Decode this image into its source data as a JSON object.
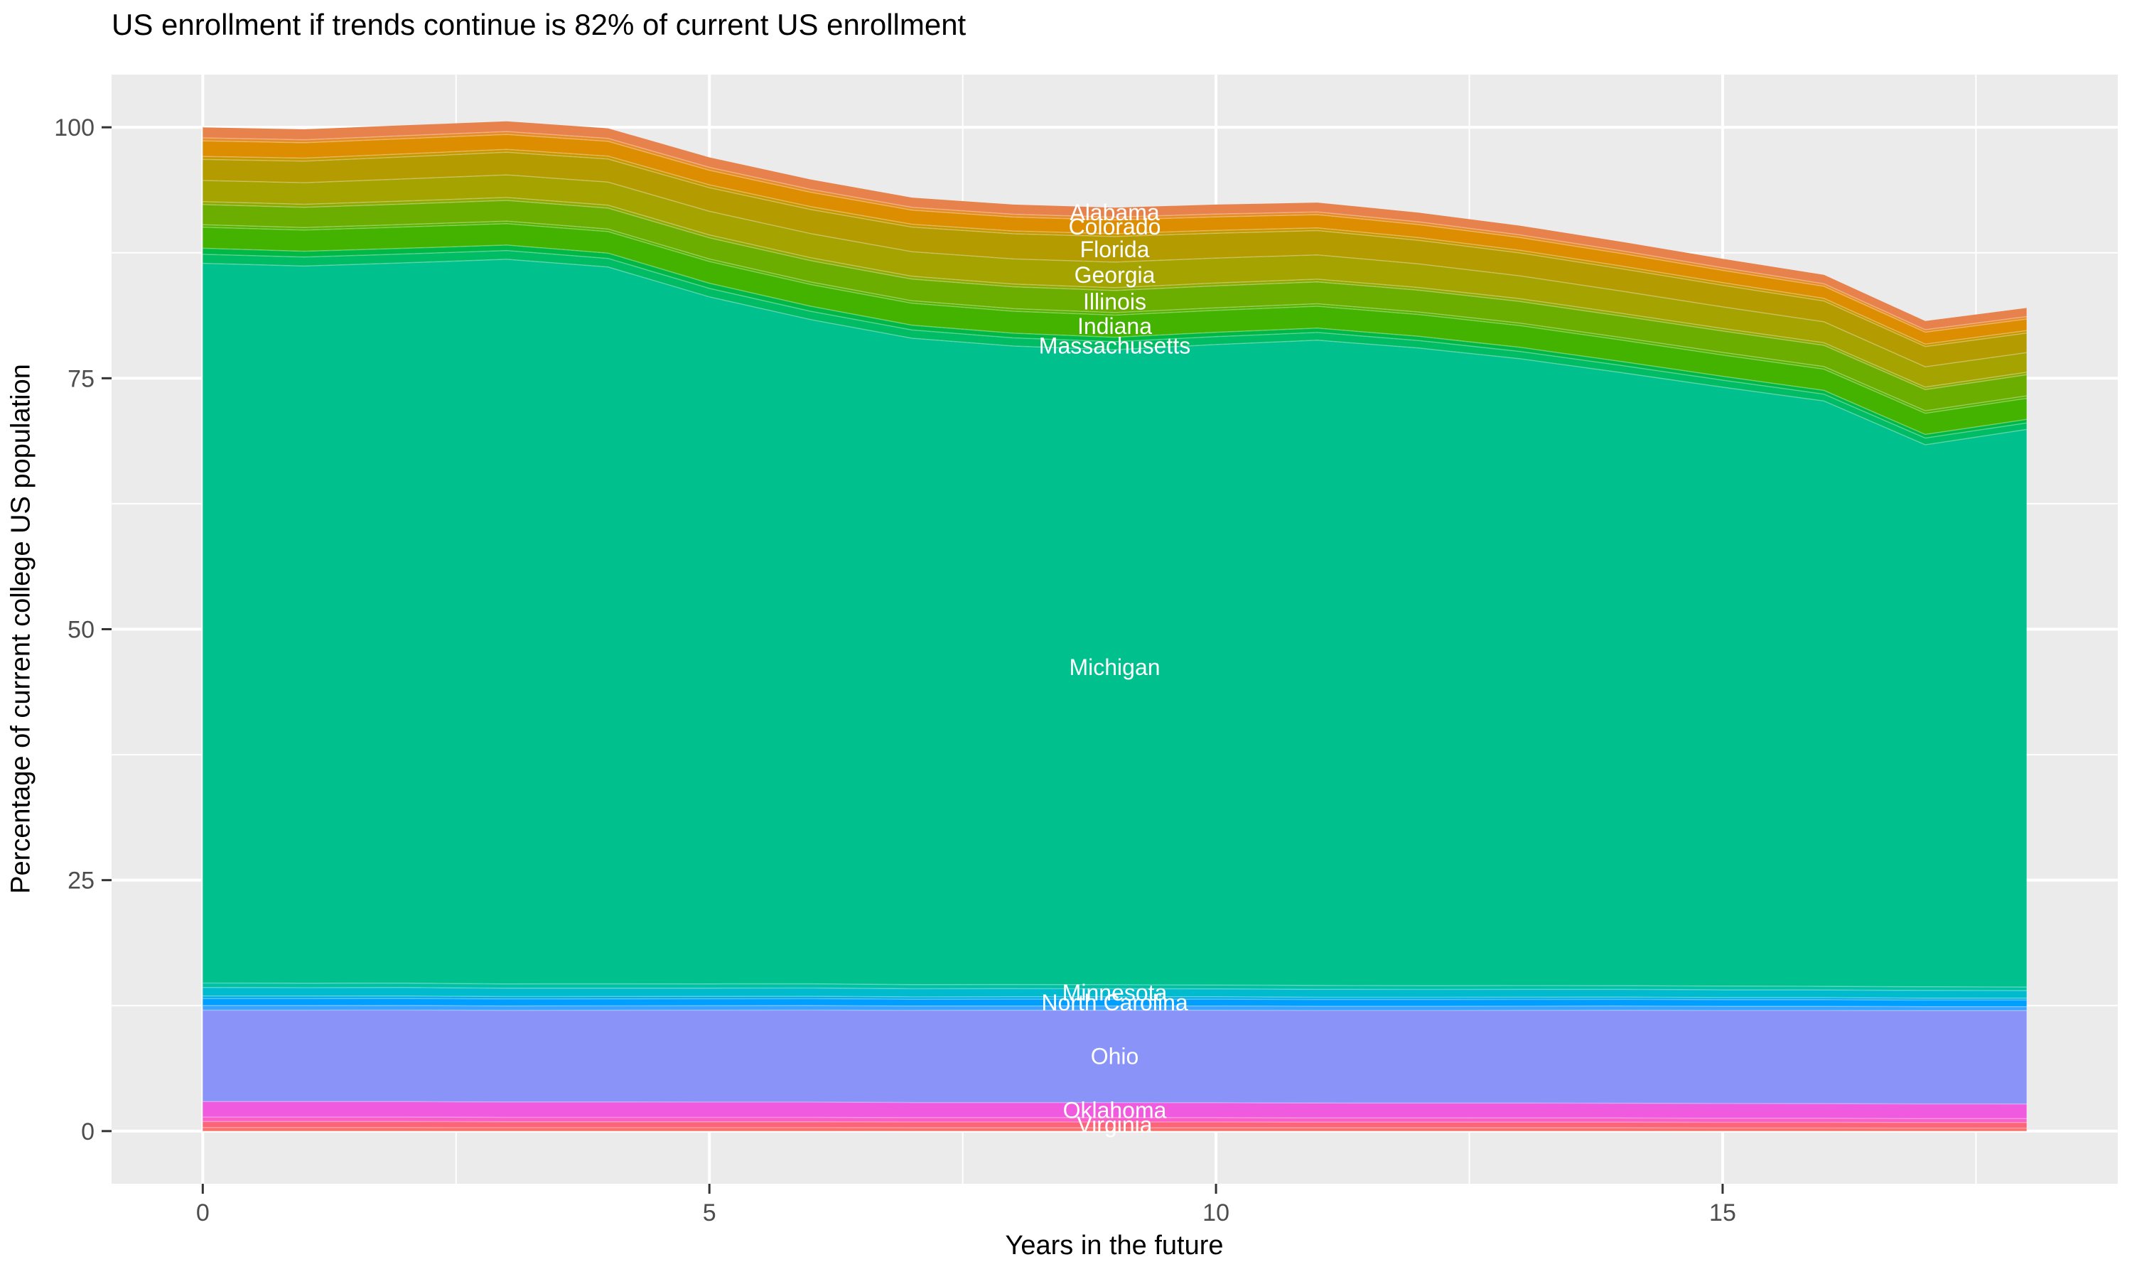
{
  "title": "US enrollment if trends continue is 82% of current US enrollment",
  "x_axis": {
    "label": "Years in the future",
    "ticks": [
      0,
      5,
      10,
      15
    ],
    "minor_ticks": [
      2.5,
      7.5,
      12.5,
      17.5
    ],
    "range": [
      -0.9,
      18.9
    ]
  },
  "y_axis": {
    "label": "Percentage of current college US population",
    "ticks": [
      0,
      25,
      50,
      75,
      100
    ],
    "minor_ticks": [
      12.5,
      37.5,
      62.5,
      87.5
    ],
    "range": [
      -5.25,
      105.25
    ]
  },
  "style": {
    "background": "#FFFFFF",
    "panel": "#EBEBEB",
    "grid": "#FFFFFF",
    "tick_mark": "#333333",
    "tick_label": "#4D4D4D",
    "title_color": "#000000",
    "band_label_color": "#FFFFFF",
    "band_separator": "rgba(255,255,255,0.30)"
  },
  "chart_data": {
    "type": "area",
    "stacked": true,
    "title": "US enrollment if trends continue is 82% of current US enrollment",
    "xlabel": "Years in the future",
    "ylabel": "Percentage of current college US population",
    "xlim": [
      -0.9,
      18.9
    ],
    "ylim": [
      -5.25,
      105.25
    ],
    "grid": true,
    "legend": false,
    "label_x_year": 9,
    "end_total_pct": 82,
    "x": [
      0,
      1,
      2,
      3,
      4,
      5,
      6,
      7,
      8,
      9,
      10,
      11,
      12,
      13,
      14,
      15,
      16,
      17,
      18
    ],
    "totals_top_boundary": [
      100,
      99.8,
      100.2,
      100.6,
      99.9,
      97.0,
      94.8,
      93.0,
      92.3,
      92.0,
      92.3,
      92.5,
      91.5,
      90.2,
      88.6,
      86.9,
      85.3,
      80.7,
      82.0
    ],
    "series_top_to_bottom": [
      {
        "key": "alabama",
        "name": "Alabama",
        "labeled": true,
        "color": "#E8824D",
        "values": [
          1.05,
          1.04,
          1.03,
          1.02,
          1.01,
          0.99,
          0.98,
          0.97,
          0.96,
          0.95,
          0.94,
          0.93,
          0.92,
          0.91,
          0.9,
          0.89,
          0.88,
          0.86,
          0.85
        ]
      },
      {
        "key": "minor-1",
        "name": "",
        "labeled": false,
        "color": "#E78C2A",
        "values": [
          0.3,
          0.3,
          0.3,
          0.29,
          0.29,
          0.29,
          0.29,
          0.28,
          0.28,
          0.28,
          0.28,
          0.27,
          0.27,
          0.27,
          0.27,
          0.26,
          0.26,
          0.25,
          0.25
        ]
      },
      {
        "key": "colorado",
        "name": "Colorado",
        "labeled": true,
        "color": "#DD8D00",
        "values": [
          1.55,
          1.53,
          1.51,
          1.49,
          1.47,
          1.45,
          1.43,
          1.41,
          1.39,
          1.37,
          1.35,
          1.32,
          1.3,
          1.27,
          1.25,
          1.23,
          1.2,
          1.18,
          1.15
        ]
      },
      {
        "key": "minor-2",
        "name": "",
        "labeled": false,
        "color": "#C89800",
        "values": [
          0.3,
          0.3,
          0.3,
          0.29,
          0.29,
          0.29,
          0.29,
          0.28,
          0.28,
          0.28,
          0.28,
          0.27,
          0.27,
          0.27,
          0.27,
          0.26,
          0.26,
          0.25,
          0.25
        ]
      },
      {
        "key": "florida",
        "name": "Florida",
        "labeled": true,
        "color": "#B49B00",
        "values": [
          2.1,
          2.15,
          2.2,
          2.25,
          2.3,
          2.35,
          2.4,
          2.45,
          2.5,
          2.55,
          2.48,
          2.42,
          2.35,
          2.28,
          2.22,
          2.15,
          2.08,
          2.02,
          1.95
        ]
      },
      {
        "key": "georgia",
        "name": "Georgia",
        "labeled": true,
        "color": "#A5A300",
        "values": [
          2.1,
          2.15,
          2.2,
          2.25,
          2.3,
          2.35,
          2.4,
          2.45,
          2.5,
          2.55,
          2.48,
          2.42,
          2.35,
          2.28,
          2.22,
          2.15,
          2.08,
          2.02,
          1.95
        ]
      },
      {
        "key": "minor-3",
        "name": "",
        "labeled": false,
        "color": "#8FAA00",
        "values": [
          0.3,
          0.3,
          0.3,
          0.29,
          0.29,
          0.29,
          0.29,
          0.28,
          0.28,
          0.28,
          0.28,
          0.27,
          0.27,
          0.27,
          0.27,
          0.26,
          0.26,
          0.25,
          0.25
        ]
      },
      {
        "key": "illinois",
        "name": "Illinois",
        "labeled": true,
        "color": "#6CAE00",
        "values": [
          2.0,
          2.02,
          2.04,
          2.07,
          2.09,
          2.11,
          2.13,
          2.16,
          2.18,
          2.2,
          2.19,
          2.18,
          2.17,
          2.16,
          2.14,
          2.13,
          2.12,
          2.11,
          2.1
        ]
      },
      {
        "key": "minor-4",
        "name": "",
        "labeled": false,
        "color": "#55B300",
        "values": [
          0.25,
          0.25,
          0.25,
          0.25,
          0.25,
          0.25,
          0.25,
          0.25,
          0.25,
          0.25,
          0.25,
          0.25,
          0.25,
          0.25,
          0.25,
          0.25,
          0.25,
          0.25,
          0.25
        ]
      },
      {
        "key": "indiana",
        "name": "Indiana",
        "labeled": true,
        "color": "#43B300",
        "values": [
          2.1,
          2.11,
          2.12,
          2.13,
          2.14,
          2.16,
          2.17,
          2.18,
          2.19,
          2.2,
          2.19,
          2.18,
          2.17,
          2.16,
          2.14,
          2.13,
          2.12,
          2.11,
          2.1
        ]
      },
      {
        "key": "minor-5",
        "name": "",
        "labeled": false,
        "color": "#00B845",
        "values": [
          0.6,
          0.58,
          0.57,
          0.55,
          0.53,
          0.52,
          0.5,
          0.48,
          0.47,
          0.45,
          0.44,
          0.43,
          0.42,
          0.41,
          0.39,
          0.38,
          0.37,
          0.36,
          0.35
        ]
      },
      {
        "key": "massachusetts",
        "name": "Massachusetts",
        "labeled": true,
        "color": "#00BC65",
        "values": [
          0.9,
          0.89,
          0.88,
          0.87,
          0.86,
          0.84,
          0.83,
          0.82,
          0.81,
          0.8,
          0.78,
          0.77,
          0.75,
          0.73,
          0.72,
          0.7,
          0.68,
          0.67,
          0.65
        ]
      },
      {
        "key": "michigan",
        "name": "Michigan",
        "labeled": true,
        "color": "#00C08E",
        "values": [
          71.7,
          71.45,
          71.76,
          72.19,
          71.41,
          68.45,
          66.17,
          64.4,
          63.61,
          63.26,
          63.8,
          64.28,
          63.52,
          62.44,
          61.07,
          59.67,
          58.32,
          54.0,
          55.55
        ]
      },
      {
        "key": "minor-6",
        "name": "",
        "labeled": false,
        "color": "#00C1A4",
        "values": [
          0.45,
          0.44,
          0.44,
          0.43,
          0.43,
          0.42,
          0.42,
          0.41,
          0.41,
          0.4,
          0.39,
          0.39,
          0.38,
          0.38,
          0.37,
          0.37,
          0.36,
          0.36,
          0.35
        ]
      },
      {
        "key": "minnesota",
        "name": "Minnesota",
        "labeled": true,
        "color": "#00BACD",
        "values": [
          0.85,
          0.84,
          0.84,
          0.83,
          0.83,
          0.82,
          0.82,
          0.81,
          0.81,
          0.8,
          0.79,
          0.79,
          0.78,
          0.78,
          0.77,
          0.77,
          0.76,
          0.76,
          0.75
        ]
      },
      {
        "key": "minor-7",
        "name": "",
        "labeled": false,
        "color": "#00ADE3",
        "values": [
          0.25,
          0.25,
          0.25,
          0.24,
          0.24,
          0.24,
          0.24,
          0.23,
          0.23,
          0.23,
          0.23,
          0.22,
          0.22,
          0.22,
          0.22,
          0.21,
          0.21,
          0.2,
          0.2
        ]
      },
      {
        "key": "north-carolina",
        "name": "North Carolina",
        "labeled": true,
        "color": "#009FFF",
        "values": [
          0.7,
          0.7,
          0.7,
          0.69,
          0.69,
          0.69,
          0.69,
          0.68,
          0.68,
          0.68,
          0.68,
          0.67,
          0.67,
          0.67,
          0.67,
          0.66,
          0.66,
          0.65,
          0.65
        ]
      },
      {
        "key": "minor-8",
        "name": "",
        "labeled": false,
        "color": "#3AA2FF",
        "values": [
          0.45,
          0.45,
          0.45,
          0.44,
          0.44,
          0.44,
          0.44,
          0.43,
          0.43,
          0.43,
          0.43,
          0.42,
          0.42,
          0.42,
          0.42,
          0.41,
          0.41,
          0.4,
          0.4
        ]
      },
      {
        "key": "ohio",
        "name": "Ohio",
        "labeled": true,
        "color": "#8A93F8",
        "values": [
          9.1,
          9.11,
          9.12,
          9.13,
          9.14,
          9.16,
          9.17,
          9.18,
          9.19,
          9.2,
          9.21,
          9.22,
          9.23,
          9.24,
          9.26,
          9.27,
          9.28,
          9.29,
          9.3
        ]
      },
      {
        "key": "oklahoma",
        "name": "Oklahoma",
        "labeled": true,
        "color": "#F05ADF",
        "values": [
          1.55,
          1.54,
          1.54,
          1.53,
          1.53,
          1.52,
          1.52,
          1.51,
          1.51,
          1.5,
          1.49,
          1.49,
          1.48,
          1.48,
          1.47,
          1.47,
          1.46,
          1.46,
          1.45
        ]
      },
      {
        "key": "minor-9",
        "name": "",
        "labeled": false,
        "color": "#FA5FC8",
        "values": [
          0.45,
          0.45,
          0.45,
          0.44,
          0.44,
          0.44,
          0.44,
          0.43,
          0.43,
          0.43,
          0.43,
          0.42,
          0.42,
          0.42,
          0.42,
          0.41,
          0.41,
          0.4,
          0.4
        ]
      },
      {
        "key": "virginia",
        "name": "Virginia",
        "labeled": true,
        "color": "#FC6479",
        "values": [
          0.6,
          0.6,
          0.6,
          0.59,
          0.59,
          0.59,
          0.59,
          0.58,
          0.58,
          0.58,
          0.58,
          0.57,
          0.57,
          0.57,
          0.57,
          0.56,
          0.56,
          0.55,
          0.55
        ]
      },
      {
        "key": "minor-10",
        "name": "",
        "labeled": false,
        "color": "#F9706C",
        "values": [
          0.35,
          0.35,
          0.35,
          0.34,
          0.34,
          0.34,
          0.34,
          0.33,
          0.33,
          0.33,
          0.33,
          0.32,
          0.32,
          0.32,
          0.32,
          0.31,
          0.31,
          0.3,
          0.3
        ]
      }
    ]
  }
}
